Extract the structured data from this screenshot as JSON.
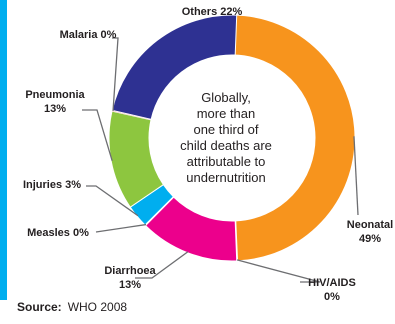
{
  "chart_data": {
    "type": "pie",
    "categories": [
      "Neonatal",
      "HIV/AIDS",
      "Diarrhoea",
      "Measles",
      "Injuries",
      "Pneumonia",
      "Malaria",
      "Others"
    ],
    "values": [
      49,
      0,
      13,
      0,
      3,
      13,
      0,
      22
    ],
    "labels": [
      [
        "Neonatal",
        "49%"
      ],
      [
        "HIV/AIDS",
        "0%"
      ],
      [
        "Diarrhoea",
        "13%"
      ],
      [
        "Measles 0%"
      ],
      [
        "Injuries 3%"
      ],
      [
        "Pneumonia",
        "13%"
      ],
      [
        "Malaria 0%"
      ],
      [
        "Others 22%"
      ]
    ],
    "colors": [
      "#f7941d",
      "#f7941d",
      "#ec008c",
      "#ffffff",
      "#00aeef",
      "#8dc63f",
      "#ed1c24",
      "#2e3192"
    ],
    "center_text": [
      "Globally,",
      "more than",
      "one third of",
      "child deaths are",
      "attributable to",
      "undernutrition"
    ]
  },
  "source": {
    "label": "Source:",
    "text": "WHO 2008"
  },
  "accent_color": "#00aeef"
}
